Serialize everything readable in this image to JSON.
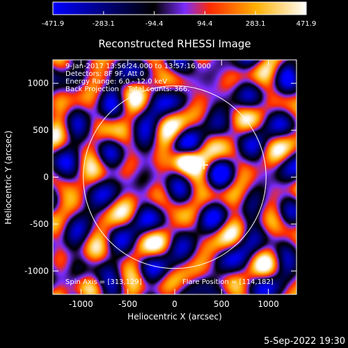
{
  "chart_data": {
    "type": "heatmap",
    "title": "Reconstructed RHESSI Image",
    "xlabel": "Heliocentric X (arcsec)",
    "ylabel": "Heliocentric Y (arcsec)",
    "xlim": [
      -1300,
      1300
    ],
    "ylim": [
      -1250,
      1250
    ],
    "x_ticks": [
      -1000,
      -500,
      0,
      500,
      1000
    ],
    "x_tick_labels": [
      "-1000",
      "-500",
      "0",
      "500",
      "1000"
    ],
    "y_ticks": [
      -1000,
      -500,
      0,
      500,
      1000
    ],
    "y_tick_labels": [
      "-1000",
      "-500",
      "0",
      "500",
      "1000"
    ],
    "colorbar": {
      "range": [
        -471.9,
        471.9
      ],
      "ticks": [
        -471.9,
        -283.1,
        -94.4,
        94.4,
        283.1,
        471.9
      ],
      "tick_labels": [
        "-471.9",
        "-283.1",
        "-94.4",
        "94.4",
        "283.1",
        "471.9"
      ],
      "colors": [
        "#0000ff",
        "#000000",
        "#7b2cff",
        "#ff2a00",
        "#ffb000",
        "#ffffff"
      ],
      "placement": "top"
    },
    "solar_limb_radius_arcsec": 975,
    "flare_position": [
      114,
      182
    ],
    "marker_position": [
      313,
      129
    ],
    "annotations": {
      "time_range": "9-Jan-2017 13:56:24.000 to 13:57:16.000",
      "detectors": "Detectors: 8F 9F, Att 0",
      "energy_range": "Energy Range: 6.0 - 12.0 keV",
      "method_counts": "Back Projection    Total counts: 366.",
      "spin_axis": "Spin Axis = [313,129]",
      "flare_position_label": "Flare Position = [114,182]"
    }
  },
  "footer": {
    "date_time": "5-Sep-2022 19:30"
  }
}
